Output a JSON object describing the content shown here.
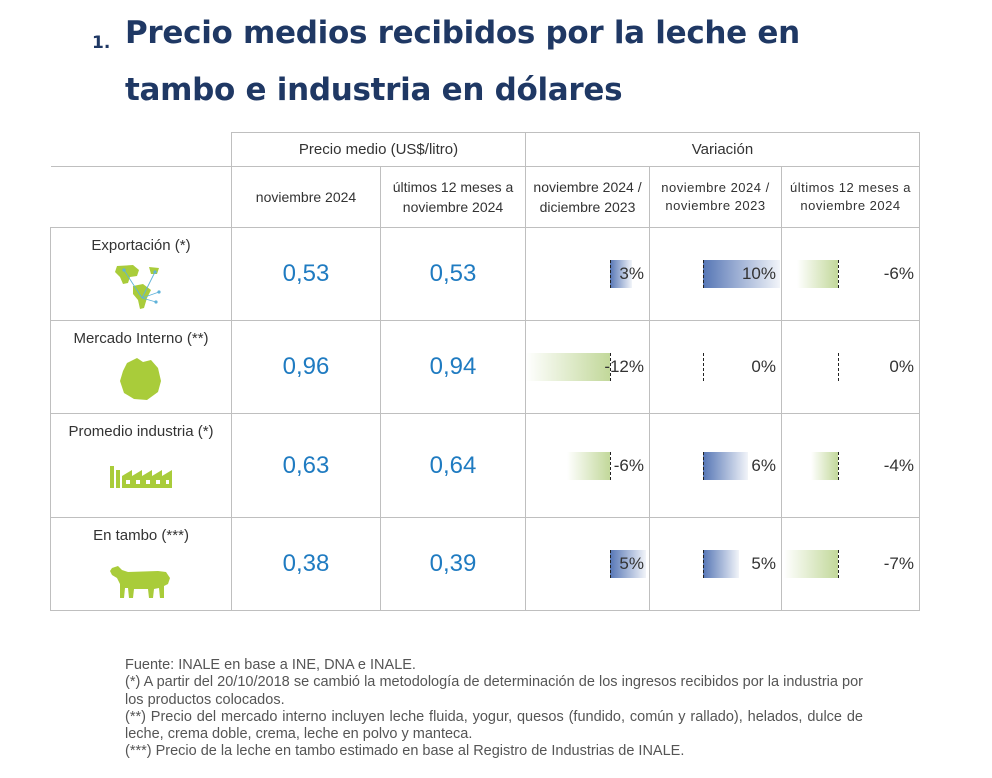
{
  "title": {
    "number": "1.",
    "line1": "Precio medios recibidos por la leche en",
    "line2": "tambo e industria en dólares"
  },
  "headers": {
    "price_group": "Precio medio (US$/litro)",
    "var_group": "Variación",
    "sub": [
      "noviembre 2024",
      "últimos 12 meses a noviembre 2024",
      "noviembre 2024 / diciembre 2023",
      "noviembre 2024 / noviembre 2023",
      "últimos 12 meses a noviembre 2024"
    ]
  },
  "rows": [
    {
      "label": "Exportación (*)",
      "icon": "world-map-icon",
      "price_nov": "0,53",
      "price_12m": "0,53",
      "var1": "3%",
      "var2": "10%",
      "var3": "-6%",
      "var_values": [
        3,
        10,
        -6
      ]
    },
    {
      "label": "Mercado Interno (**)",
      "icon": "uruguay-map-icon",
      "price_nov": "0,96",
      "price_12m": "0,94",
      "var1": "-12%",
      "var2": "0%",
      "var3": "0%",
      "var_values": [
        -12,
        0,
        0
      ]
    },
    {
      "label": "Promedio industria (*)",
      "icon": "factory-icon",
      "price_nov": "0,63",
      "price_12m": "0,64",
      "var1": "-6%",
      "var2": "6%",
      "var3": "-4%",
      "var_values": [
        -6,
        6,
        -4
      ]
    },
    {
      "label": "En tambo (***)",
      "icon": "cow-icon",
      "price_nov": "0,38",
      "price_12m": "0,39",
      "var1": "5%",
      "var2": "5%",
      "var3": "-7%",
      "var_values": [
        5,
        5,
        -7
      ]
    }
  ],
  "colors": {
    "title": "#1f3864",
    "value": "#1f7bc1",
    "bar_positive": "#5676b5",
    "bar_negative": "#c2d89a",
    "icon": "#a9cc3a"
  },
  "notes": [
    "Fuente: INALE en base a INE, DNA e INALE.",
    "(*) A partir del 20/10/2018 se cambió la metodología de determinación de los ingresos recibidos por la industria por los productos colocados.",
    "(**) Precio del mercado interno incluyen leche fluida, yogur, quesos (fundido, común y rallado), helados, dulce de leche, crema doble, crema, leche en polvo y manteca.",
    "(***) Precio de la leche en tambo estimado en base al Registro de Industrias de INALE."
  ]
}
